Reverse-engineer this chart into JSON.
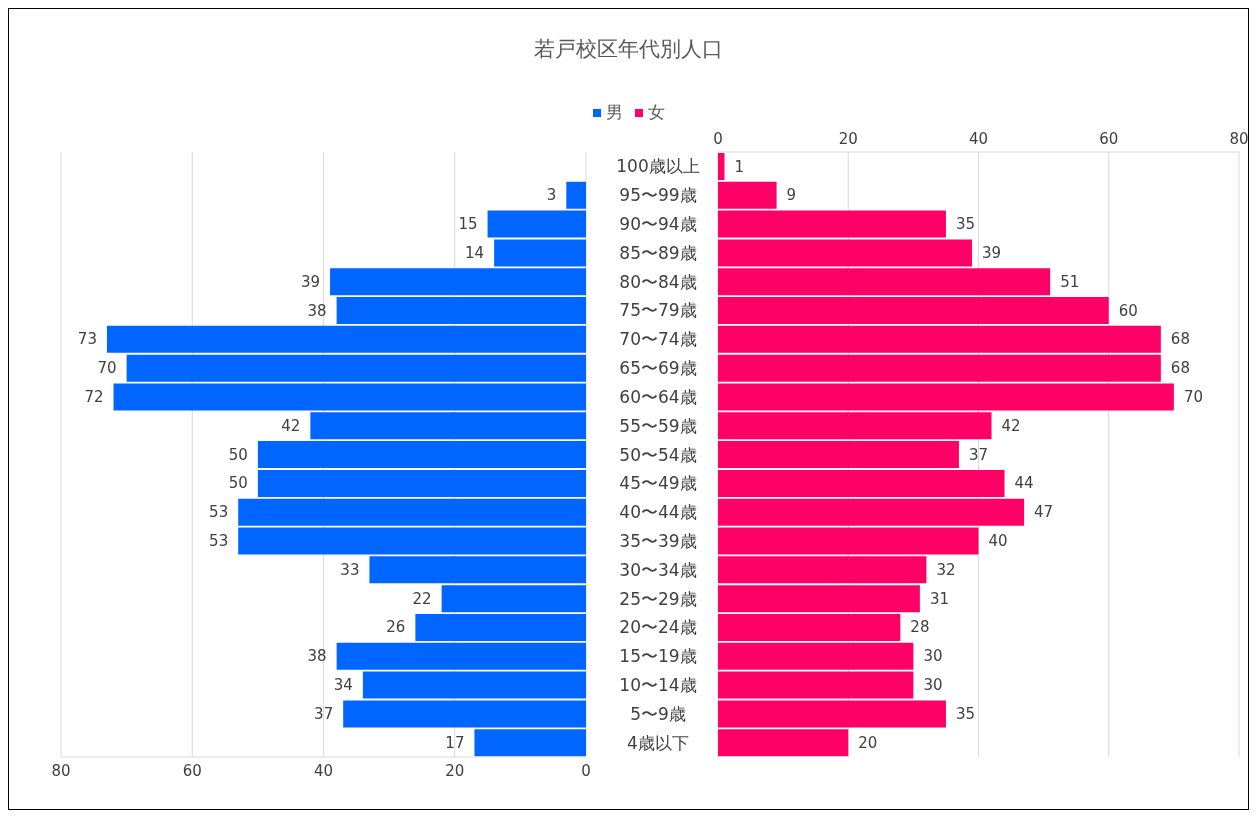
{
  "chart_data": [
    {
      "type": "bar",
      "orientation": "horizontal",
      "title": "若戸校区年代別人口",
      "categories": [
        "100歳以上",
        "95〜99歳",
        "90〜94歳",
        "85〜89歳",
        "80〜84歳",
        "75〜79歳",
        "70〜74歳",
        "65〜69歳",
        "60〜64歳",
        "55〜59歳",
        "50〜54歳",
        "45〜49歳",
        "40〜44歳",
        "35〜39歳",
        "30〜34歳",
        "25〜29歳",
        "20〜24歳",
        "15〜19歳",
        "10〜14歳",
        "5〜9歳",
        "4歳以下"
      ],
      "series": [
        {
          "name": "男",
          "color": "#0066ff",
          "values": [
            null,
            3,
            15,
            14,
            39,
            38,
            73,
            70,
            72,
            42,
            50,
            50,
            53,
            53,
            33,
            22,
            26,
            38,
            34,
            37,
            17
          ]
        }
      ],
      "xlim": [
        80,
        0
      ],
      "xticks": [
        80,
        60,
        40,
        20,
        0
      ],
      "grid": "x",
      "legend": "top",
      "data_labels": true
    },
    {
      "type": "bar",
      "orientation": "horizontal",
      "categories": [
        null,
        null,
        null,
        null,
        null,
        null,
        null,
        null,
        null,
        null,
        null,
        null,
        null,
        null,
        null,
        null,
        null,
        null,
        null,
        null,
        null
      ],
      "series": [
        {
          "name": "女",
          "color": "#ff0066",
          "values": [
            1,
            9,
            35,
            39,
            51,
            60,
            68,
            68,
            70,
            42,
            37,
            44,
            47,
            40,
            32,
            31,
            28,
            30,
            30,
            35,
            20
          ]
        }
      ],
      "xlim": [
        0,
        80
      ],
      "xticks": [
        0,
        20,
        40,
        60,
        80
      ],
      "grid": "x",
      "legend": "top",
      "data_labels": true,
      "tick_labels": "x"
    }
  ]
}
